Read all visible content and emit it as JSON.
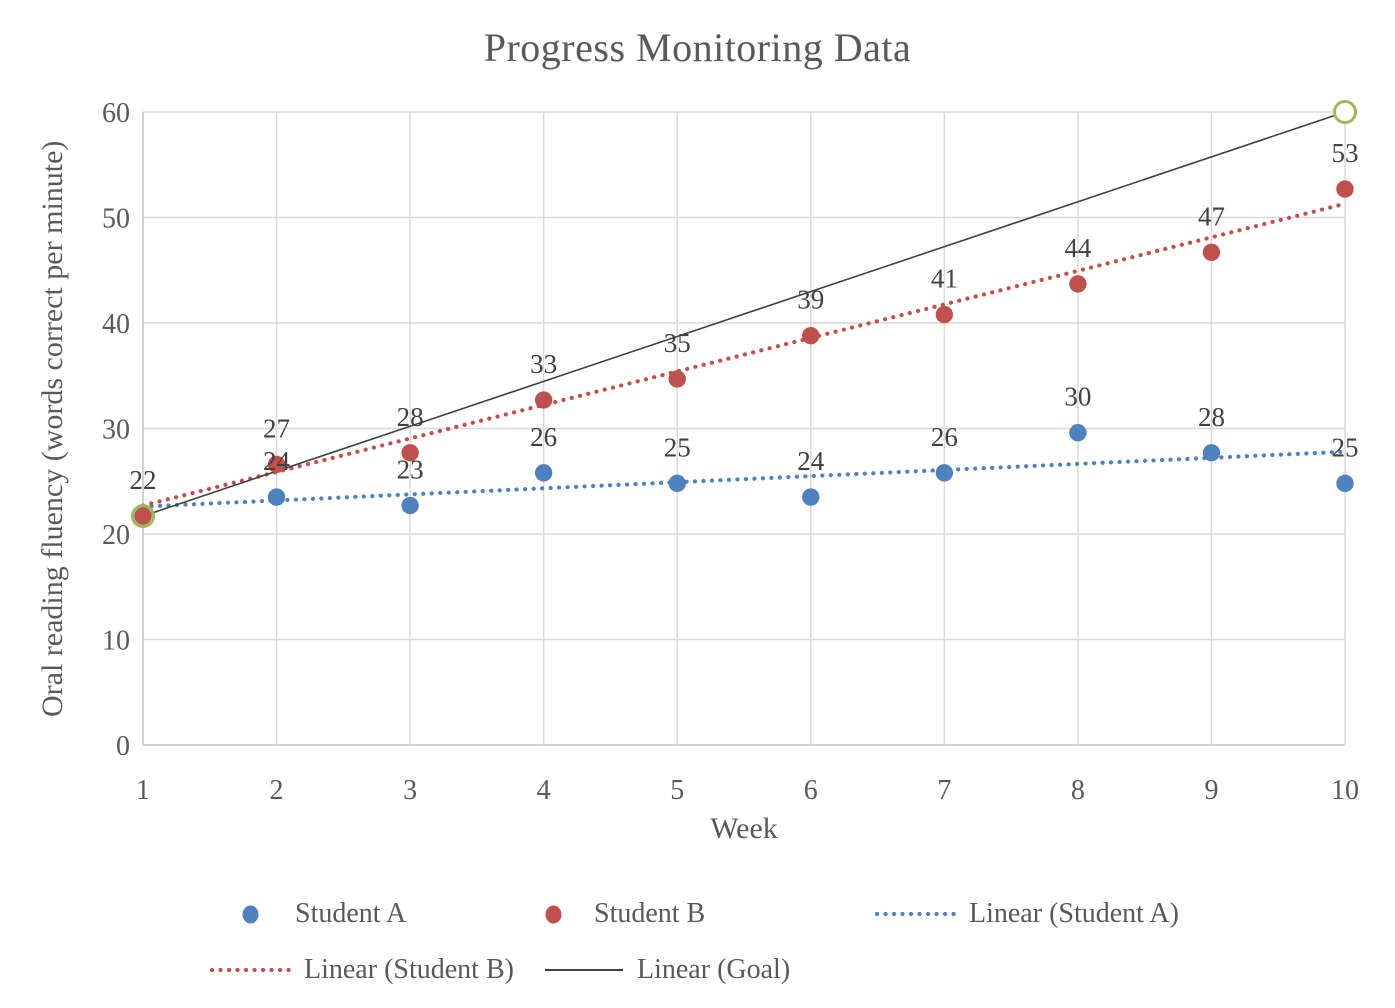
{
  "title": "Progress Monitoring Data",
  "chart_data": {
    "type": "scatter",
    "title": "Progress Monitoring Data",
    "xlabel": "Week",
    "ylabel": "Oral reading fluency (words correct per minute)",
    "xlim": [
      1,
      10
    ],
    "ylim": [
      0,
      60
    ],
    "xticks": [
      "1",
      "2",
      "3",
      "4",
      "5",
      "6",
      "7",
      "8",
      "9",
      "10"
    ],
    "yticks": [
      "0",
      "10",
      "20",
      "30",
      "40",
      "50",
      "60"
    ],
    "grid": true,
    "legend_position": "bottom",
    "x": [
      1,
      2,
      3,
      4,
      5,
      6,
      7,
      8,
      9,
      10
    ],
    "series": [
      {
        "name": "Student A",
        "color": "#4F81BD",
        "marker": "circle",
        "values": [
          22,
          24,
          23,
          26,
          25,
          24,
          26,
          30,
          28,
          25
        ],
        "plotted": [
          21.7,
          23.5,
          22.7,
          25.8,
          24.8,
          23.5,
          25.8,
          29.6,
          27.7,
          24.8
        ],
        "point_labels": [
          null,
          "24",
          "23",
          "26",
          "25",
          "24",
          "26",
          "30",
          "28",
          "25"
        ]
      },
      {
        "name": "Student B",
        "color": "#C0504D",
        "marker": "circle",
        "values": [
          22,
          27,
          28,
          33,
          35,
          39,
          41,
          44,
          47,
          53
        ],
        "plotted": [
          21.7,
          26.6,
          27.7,
          32.7,
          34.7,
          38.8,
          40.8,
          43.7,
          46.7,
          52.7
        ],
        "point_labels": [
          "22",
          "27",
          "28",
          "33",
          "35",
          "39",
          "41",
          "44",
          "47",
          "53"
        ]
      }
    ],
    "goal_points": {
      "name": "Goal",
      "marker_color": "#9BBB59",
      "points": [
        {
          "x": 1,
          "y": 21.7
        },
        {
          "x": 10,
          "y": 60
        }
      ]
    },
    "trendlines": [
      {
        "name": "Linear (Student A)",
        "color": "#4F81BD",
        "style": "dotted",
        "x1": 1,
        "y1": 22.6,
        "x2": 10,
        "y2": 27.8
      },
      {
        "name": "Linear (Student B)",
        "color": "#C0504D",
        "style": "dotted",
        "x1": 1,
        "y1": 22.7,
        "x2": 10,
        "y2": 51.3
      },
      {
        "name": "Linear (Goal)",
        "color": "#404040",
        "style": "solid",
        "x1": 1,
        "y1": 21.7,
        "x2": 10,
        "y2": 60
      }
    ]
  },
  "legend": {
    "items": [
      {
        "label": "Student A",
        "swatch": "dot",
        "color": "#4F81BD"
      },
      {
        "label": "Student B",
        "swatch": "dot",
        "color": "#C0504D"
      },
      {
        "label": "Linear (Student A)",
        "swatch": "dotted-line",
        "color": "#4F81BD"
      },
      {
        "label": "Linear (Student B)",
        "swatch": "dotted-line",
        "color": "#C0504D"
      },
      {
        "label": "Linear (Goal)",
        "swatch": "solid-line",
        "color": "#595959"
      }
    ]
  },
  "colors": {
    "student_a": "#4F81BD",
    "student_b": "#C0504D",
    "goal_marker": "#9BBB59",
    "goal_line": "#404040",
    "gridline": "#D9D9D9",
    "axis_line": "#C3C3C3",
    "tick_text": "#595959",
    "data_label_text": "#404040",
    "title_text": "#595959"
  }
}
